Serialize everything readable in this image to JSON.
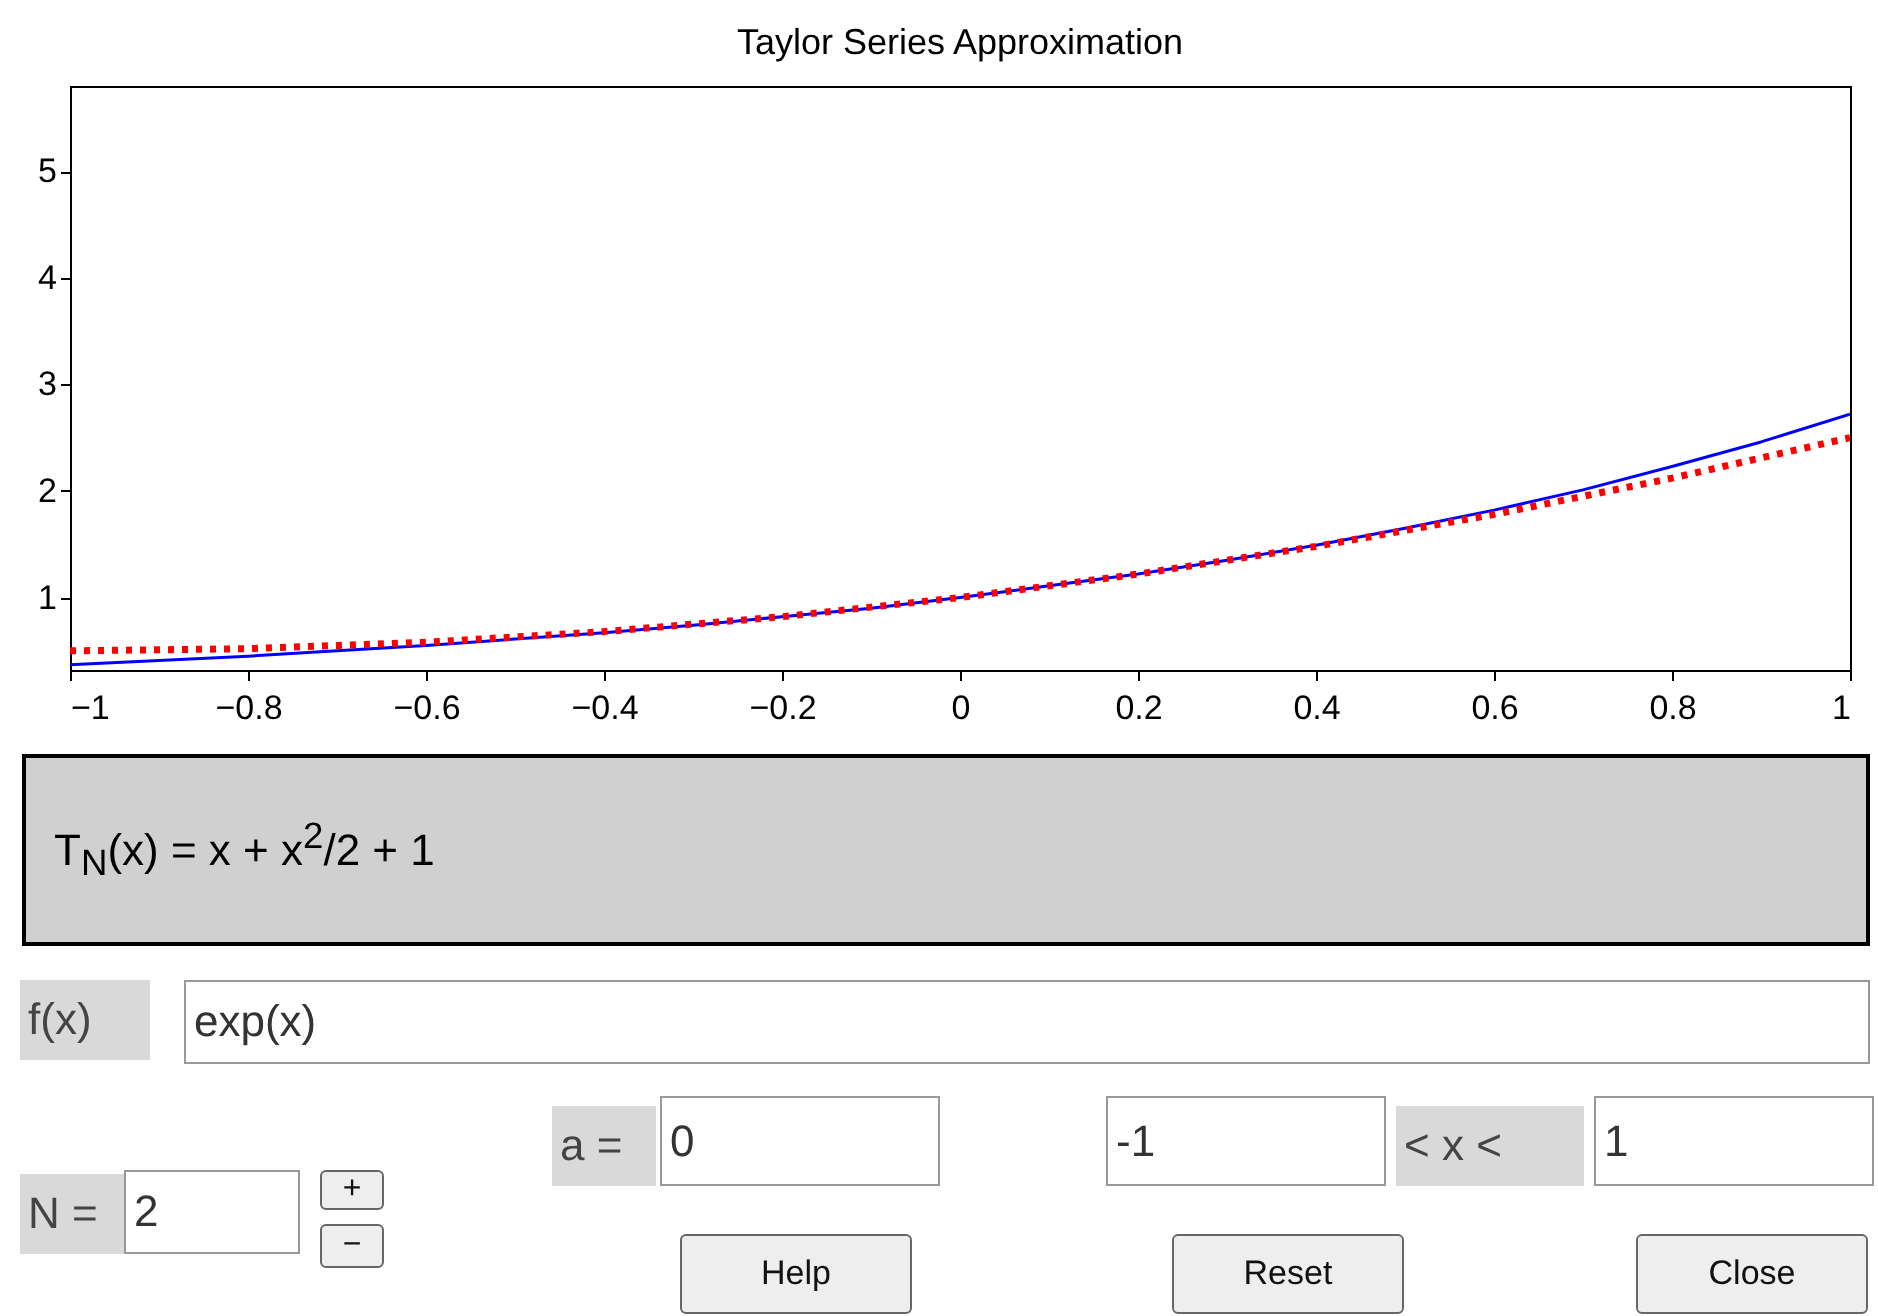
{
  "chart_data": {
    "type": "line",
    "title": "Taylor Series Approximation",
    "x": [
      -1,
      -0.9,
      -0.8,
      -0.7,
      -0.6,
      -0.5,
      -0.4,
      -0.3,
      -0.2,
      -0.1,
      0,
      0.1,
      0.2,
      0.3,
      0.4,
      0.5,
      0.6,
      0.7,
      0.8,
      0.9,
      1
    ],
    "series": [
      {
        "color": "#0000ff",
        "line_style": "solid",
        "values": [
          0.37,
          0.41,
          0.45,
          0.5,
          0.55,
          0.61,
          0.67,
          0.74,
          0.82,
          0.9,
          1,
          1.11,
          1.22,
          1.35,
          1.49,
          1.65,
          1.82,
          2.01,
          2.23,
          2.46,
          2.72
        ]
      },
      {
        "color": "#ff0000",
        "line_style": "dotted",
        "values": [
          0.5,
          0.51,
          0.52,
          0.55,
          0.58,
          0.63,
          0.68,
          0.75,
          0.82,
          0.91,
          1,
          1.11,
          1.22,
          1.35,
          1.48,
          1.63,
          1.78,
          1.95,
          2.12,
          2.31,
          2.5
        ]
      }
    ],
    "xlim": [
      -1,
      1
    ],
    "ylim": [
      0.32,
      5.8
    ],
    "xticks": [
      -1,
      -0.8,
      -0.6,
      -0.4,
      -0.2,
      0,
      0.2,
      0.4,
      0.6,
      0.8,
      1
    ],
    "yticks": [
      1,
      2,
      3,
      4,
      5
    ],
    "grid": false,
    "marker": "none",
    "annotations": [
      "T$_{N}$(x) =  x + x$^{2}$/2 + 1",
      "f(x)",
      "exp(x)",
      "a =",
      "0",
      "-1",
      "< x <",
      "1",
      "N =",
      "2",
      "+",
      "−",
      "Help",
      "Reset",
      "Close"
    ]
  }
}
